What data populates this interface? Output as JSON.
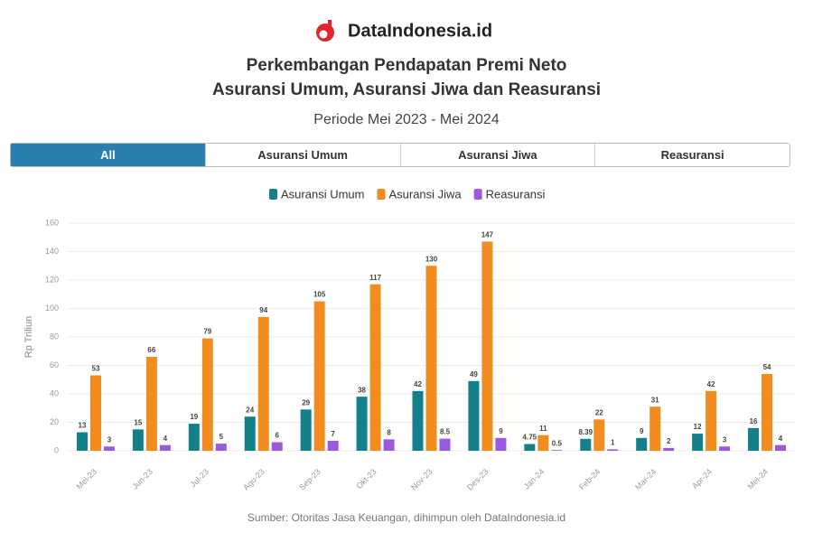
{
  "header": {
    "brand": "DataIndonesia.id"
  },
  "tabs": [
    "All",
    "Asuransi Umum",
    "Asuransi Jiwa",
    "Reasuransi"
  ],
  "chart_data": {
    "type": "bar",
    "title": [
      "Perkembangan Pendapatan Premi Neto",
      "Asuransi Umum, Asuransi Jiwa dan Reasuransi"
    ],
    "subtitle": "Periode Mei 2023 - Mei 2024",
    "y_label": "Rp Triliun",
    "categories": [
      "Mei-23",
      "Jun-23",
      "Jul-23",
      "Agu-23",
      "Sep-23",
      "Okt-23",
      "Nov-23",
      "Des-23",
      "Jan-24",
      "Feb-24",
      "Mar-24",
      "Apr-24",
      "Mei-24"
    ],
    "series": [
      {
        "name": "Asuransi Umum",
        "color": "#13808a",
        "values": [
          13,
          15,
          19,
          24,
          29,
          38,
          42,
          49,
          4.75,
          8.39,
          9,
          12,
          16
        ]
      },
      {
        "name": "Asuransi Jiwa",
        "color": "#f28c1e",
        "values": [
          53,
          66,
          79,
          94,
          105,
          117,
          130,
          147,
          11,
          22,
          31,
          42,
          54
        ]
      },
      {
        "name": "Reasuransi",
        "color": "#9a5ae0",
        "values": [
          3,
          4,
          5,
          6,
          7,
          8,
          8.5,
          9,
          0.5,
          1,
          2,
          3,
          4
        ]
      }
    ],
    "ylim": [
      0,
      160
    ],
    "yticks": [
      0,
      20,
      40,
      60,
      80,
      100,
      120,
      140,
      160
    ],
    "grid": true,
    "legend": "top"
  },
  "source": "Sumber: Otoritas Jasa Keuangan, dihimpun oleh DataIndonesia.id"
}
